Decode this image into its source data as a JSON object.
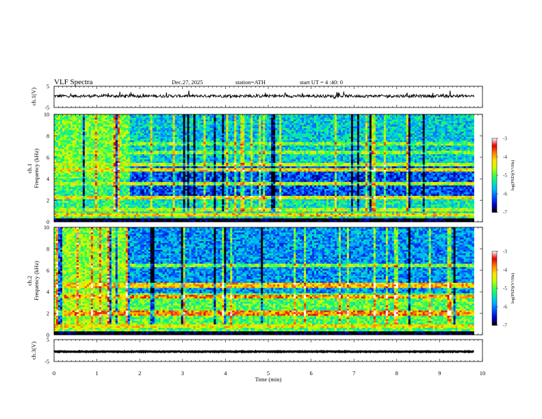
{
  "header": {
    "title": "VLF  Spectra",
    "date": "Dec.27, 2025",
    "station": "station=ATH",
    "start_time": "start  UT  =   4  :40: 0"
  },
  "chart_data": [
    {
      "type": "line",
      "name": "ch1-waveform",
      "ylabel": "ch.1(V)",
      "ylim": [
        -5,
        5
      ],
      "yticks": [
        "5",
        "-5"
      ],
      "xlim": [
        0,
        10
      ],
      "baseline": 0.4,
      "noise_amplitude": 0.7,
      "color": "#000000"
    },
    {
      "type": "heatmap",
      "name": "ch1-spectrogram",
      "ylabel": "ch.1\nFrequency  (kHz)",
      "ylim": [
        0,
        10
      ],
      "yticks": [
        "0",
        "2",
        "4",
        "6",
        "8",
        "10"
      ],
      "xlim": [
        0,
        10
      ],
      "data_end_min": 9.8,
      "colorscale": {
        "label": "log(PSD)(V²/Hz)",
        "range": [
          -7,
          -3
        ],
        "ticks": [
          "-3",
          "-4",
          "-5",
          "-6",
          "-7"
        ],
        "colors": [
          "#000000",
          "#0000c8",
          "#0050ff",
          "#00b0ff",
          "#00e8b0",
          "#40ff40",
          "#c8ff00",
          "#ffe000",
          "#ff8000",
          "#e00000",
          "#ffffff"
        ]
      },
      "bands_khz": [
        {
          "f": 0.2,
          "level": -7.0
        },
        {
          "f": 0.7,
          "level": -4.2
        },
        {
          "f": 1.1,
          "level": -4.6
        },
        {
          "f": 2.3,
          "level": -4.3
        },
        {
          "f": 3.5,
          "level": -4.6
        },
        {
          "f": 4.8,
          "level": -4.3
        },
        {
          "f": 5.3,
          "level": -4.6
        },
        {
          "f": 6.5,
          "level": -4.8
        },
        {
          "f": 7.2,
          "level": -4.9
        }
      ],
      "regions": [
        {
          "t0": 0.0,
          "t1": 1.75,
          "f0": 0,
          "f1": 4.0,
          "level": -5.2
        },
        {
          "t0": 0.0,
          "t1": 1.75,
          "f0": 4.0,
          "f1": 10,
          "level": -4.9
        },
        {
          "t0": 1.75,
          "t1": 9.8,
          "f0": 0,
          "f1": 2.2,
          "level": -5.4
        },
        {
          "t0": 1.75,
          "t1": 9.8,
          "f0": 2.2,
          "f1": 5.2,
          "level": -6.2
        },
        {
          "t0": 1.75,
          "t1": 9.8,
          "f0": 5.2,
          "f1": 10,
          "level": -5.6
        }
      ]
    },
    {
      "type": "heatmap",
      "name": "ch2-spectrogram",
      "ylabel": "ch.2\nFrequency  (kHz)",
      "ylim": [
        0,
        10
      ],
      "yticks": [
        "0",
        "2",
        "4",
        "6",
        "8",
        "10"
      ],
      "xlim": [
        0,
        10
      ],
      "data_end_min": 9.8,
      "colorscale": {
        "label": "log(PSD)(V²/Hz)",
        "range": [
          -7,
          -3
        ],
        "ticks": [
          "-3",
          "-4",
          "-5",
          "-6",
          "-7"
        ],
        "colors": [
          "#000000",
          "#0000c8",
          "#0050ff",
          "#00b0ff",
          "#00e8b0",
          "#40ff40",
          "#c8ff00",
          "#ffe000",
          "#ff8000",
          "#e00000",
          "#ffffff"
        ]
      },
      "bands_khz": [
        {
          "f": 0.2,
          "level": -7.0
        },
        {
          "f": 0.8,
          "level": -4.3
        },
        {
          "f": 2.0,
          "level": -3.8
        },
        {
          "f": 3.5,
          "level": -3.9
        },
        {
          "f": 4.6,
          "level": -4.1
        },
        {
          "f": 6.5,
          "level": -4.8
        }
      ],
      "regions": [
        {
          "t0": 0.0,
          "t1": 1.75,
          "f0": 0,
          "f1": 4.0,
          "level": -4.7
        },
        {
          "t0": 0.0,
          "t1": 1.75,
          "f0": 4.0,
          "f1": 10,
          "level": -4.8
        },
        {
          "t0": 1.75,
          "t1": 9.8,
          "f0": 0,
          "f1": 3.8,
          "level": -5.0
        },
        {
          "t0": 1.75,
          "t1": 9.8,
          "f0": 3.8,
          "f1": 10,
          "level": -5.9
        }
      ]
    },
    {
      "type": "line",
      "name": "ch3-waveform",
      "ylabel": "ch.3(V)",
      "ylim": [
        -5,
        5
      ],
      "yticks": [
        "5",
        "-5"
      ],
      "xlim": [
        0,
        10
      ],
      "baseline": -0.5,
      "noise_amplitude": 0.15,
      "color": "#000000",
      "xlabel": "Time  (min)",
      "xticks": [
        "0",
        "1",
        "2",
        "3",
        "4",
        "5",
        "6",
        "7",
        "8",
        "9",
        "10"
      ]
    }
  ]
}
